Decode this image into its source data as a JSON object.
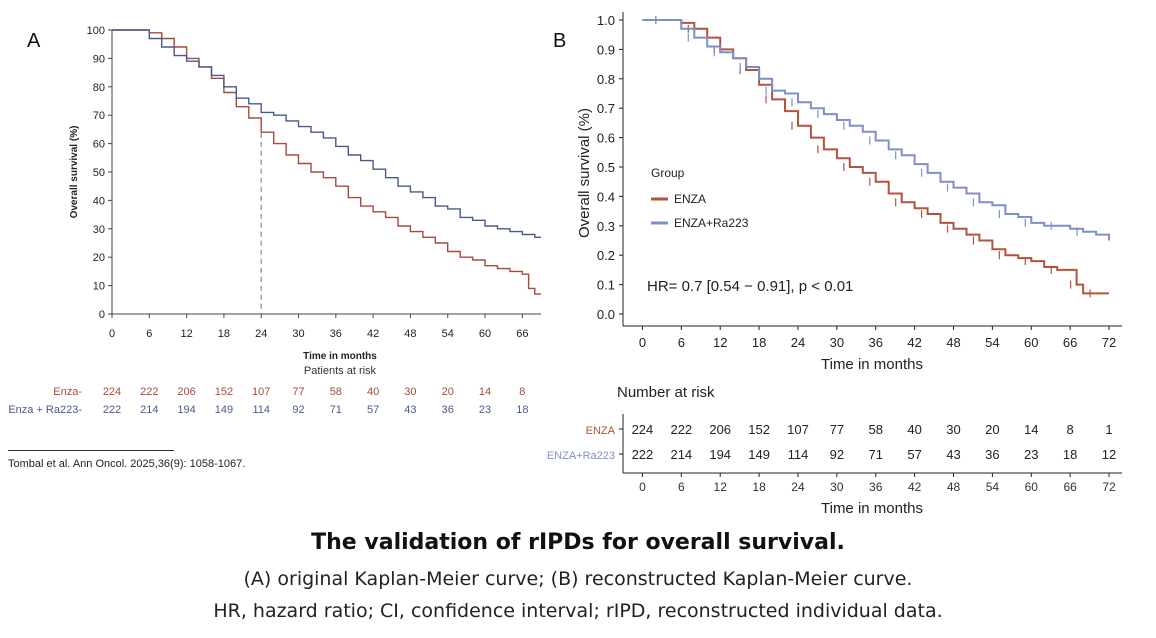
{
  "panel_a": {
    "letter": "A",
    "risk_title": "Patients at risk",
    "citation": "Tombal et al. Ann Oncol. 2025,36(9): 1058-1067."
  },
  "panel_b": {
    "letter": "B",
    "legend_title": "Group",
    "hr_text": "HR= 0.7 [0.54 − 0.91], p < 0.01",
    "risk_title": "Number at risk"
  },
  "caption": {
    "title": "The validation of rIPDs for overall survival.",
    "line1": "(A) original Kaplan-Meier curve; (B) reconstructed Kaplan-Meier curve.",
    "line2": "HR, hazard ratio; CI, confidence interval; rIPD, reconstructed individual data."
  },
  "colors": {
    "enza": "#a64b3c",
    "enza_ra": "#4a5a8a",
    "enza_b": "#b4533e",
    "enza_ra_b": "#7f8fc7"
  },
  "chart_data": [
    {
      "type": "line",
      "panel": "A",
      "xlabel": "Time in months",
      "ylabel": "Overall survival (%)",
      "xlim": [
        0,
        69
      ],
      "ylim": [
        0,
        100
      ],
      "x_ticks": [
        0,
        6,
        12,
        18,
        24,
        30,
        36,
        42,
        48,
        54,
        60,
        66
      ],
      "y_ticks": [
        0,
        10,
        20,
        30,
        40,
        50,
        60,
        70,
        80,
        90,
        100
      ],
      "reference_line_x": 24,
      "series": [
        {
          "name": "Enza",
          "x": [
            0,
            3,
            6,
            8,
            10,
            12,
            14,
            16,
            18,
            20,
            22,
            24,
            26,
            28,
            30,
            32,
            34,
            36,
            38,
            40,
            42,
            44,
            46,
            48,
            50,
            52,
            54,
            56,
            58,
            60,
            62,
            64,
            66,
            67,
            68,
            69
          ],
          "y": [
            100,
            100,
            99,
            97,
            94,
            90,
            87,
            83,
            78,
            73,
            69,
            64,
            60,
            56,
            53,
            50,
            48,
            45,
            41,
            38,
            36,
            34,
            31,
            29,
            27,
            25,
            22,
            20,
            19,
            17,
            16,
            15,
            14,
            9,
            7,
            7
          ]
        },
        {
          "name": "Enza + Ra223",
          "x": [
            0,
            3,
            6,
            8,
            10,
            12,
            14,
            16,
            18,
            20,
            22,
            24,
            26,
            28,
            30,
            32,
            34,
            36,
            38,
            40,
            42,
            44,
            46,
            48,
            50,
            52,
            54,
            56,
            58,
            60,
            62,
            64,
            66,
            68,
            69
          ],
          "y": [
            100,
            100,
            97,
            94,
            91,
            89,
            87,
            84,
            80,
            76,
            74,
            71,
            70,
            68,
            66,
            64,
            62,
            59,
            56,
            54,
            51,
            48,
            45,
            43,
            41,
            38,
            37,
            34,
            33,
            31,
            30,
            29,
            28,
            27,
            27
          ]
        }
      ],
      "risk_table": {
        "times": [
          0,
          6,
          12,
          18,
          24,
          30,
          36,
          42,
          48,
          54,
          60,
          66
        ],
        "rows": [
          {
            "label": "Enza-",
            "values": [
              224,
              222,
              206,
              152,
              107,
              77,
              58,
              40,
              30,
              20,
              14,
              8
            ]
          },
          {
            "label": "Enza + Ra223-",
            "values": [
              222,
              214,
              194,
              149,
              114,
              92,
              71,
              57,
              43,
              36,
              23,
              18
            ]
          }
        ]
      }
    },
    {
      "type": "line",
      "panel": "B",
      "xlabel": "Time in months",
      "ylabel": "Overall survival (%)",
      "xlim": [
        -3,
        74
      ],
      "ylim": [
        0,
        1
      ],
      "x_ticks": [
        0,
        6,
        12,
        18,
        24,
        30,
        36,
        42,
        48,
        54,
        60,
        66,
        72
      ],
      "y_ticks": [
        0.0,
        0.1,
        0.2,
        0.3,
        0.4,
        0.5,
        0.6,
        0.7,
        0.8,
        0.9,
        1.0
      ],
      "series": [
        {
          "name": "ENZA",
          "x": [
            0,
            3,
            6,
            8,
            10,
            12,
            14,
            16,
            18,
            20,
            22,
            24,
            26,
            28,
            30,
            32,
            34,
            36,
            38,
            40,
            42,
            44,
            46,
            48,
            50,
            52,
            54,
            56,
            58,
            60,
            62,
            64,
            66,
            67,
            68,
            70,
            72
          ],
          "y": [
            1.0,
            1.0,
            0.99,
            0.97,
            0.94,
            0.9,
            0.87,
            0.83,
            0.78,
            0.73,
            0.69,
            0.64,
            0.6,
            0.56,
            0.53,
            0.5,
            0.48,
            0.45,
            0.41,
            0.38,
            0.36,
            0.34,
            0.31,
            0.29,
            0.27,
            0.25,
            0.22,
            0.2,
            0.19,
            0.18,
            0.16,
            0.15,
            0.15,
            0.1,
            0.07,
            0.07,
            0.07
          ]
        },
        {
          "name": "ENZA+Ra223",
          "x": [
            0,
            3,
            6,
            8,
            10,
            12,
            14,
            16,
            18,
            20,
            22,
            24,
            26,
            28,
            30,
            32,
            34,
            36,
            38,
            40,
            42,
            44,
            46,
            48,
            50,
            52,
            54,
            56,
            58,
            60,
            62,
            64,
            66,
            68,
            70,
            72
          ],
          "y": [
            1.0,
            1.0,
            0.97,
            0.94,
            0.91,
            0.89,
            0.87,
            0.84,
            0.8,
            0.76,
            0.75,
            0.72,
            0.7,
            0.68,
            0.66,
            0.64,
            0.62,
            0.59,
            0.56,
            0.54,
            0.51,
            0.48,
            0.45,
            0.43,
            0.41,
            0.38,
            0.37,
            0.34,
            0.33,
            0.31,
            0.3,
            0.3,
            0.29,
            0.28,
            0.27,
            0.25
          ]
        }
      ],
      "risk_table": {
        "times": [
          0,
          6,
          12,
          18,
          24,
          30,
          36,
          42,
          48,
          54,
          60,
          66,
          72
        ],
        "rows": [
          {
            "label": "ENZA",
            "values": [
              224,
              222,
              206,
              152,
              107,
              77,
              58,
              40,
              30,
              20,
              14,
              8,
              1
            ]
          },
          {
            "label": "ENZA+Ra223",
            "values": [
              222,
              214,
              194,
              149,
              114,
              92,
              71,
              57,
              43,
              36,
              23,
              18,
              12
            ]
          }
        ],
        "xlabel": "Time in months"
      }
    }
  ]
}
